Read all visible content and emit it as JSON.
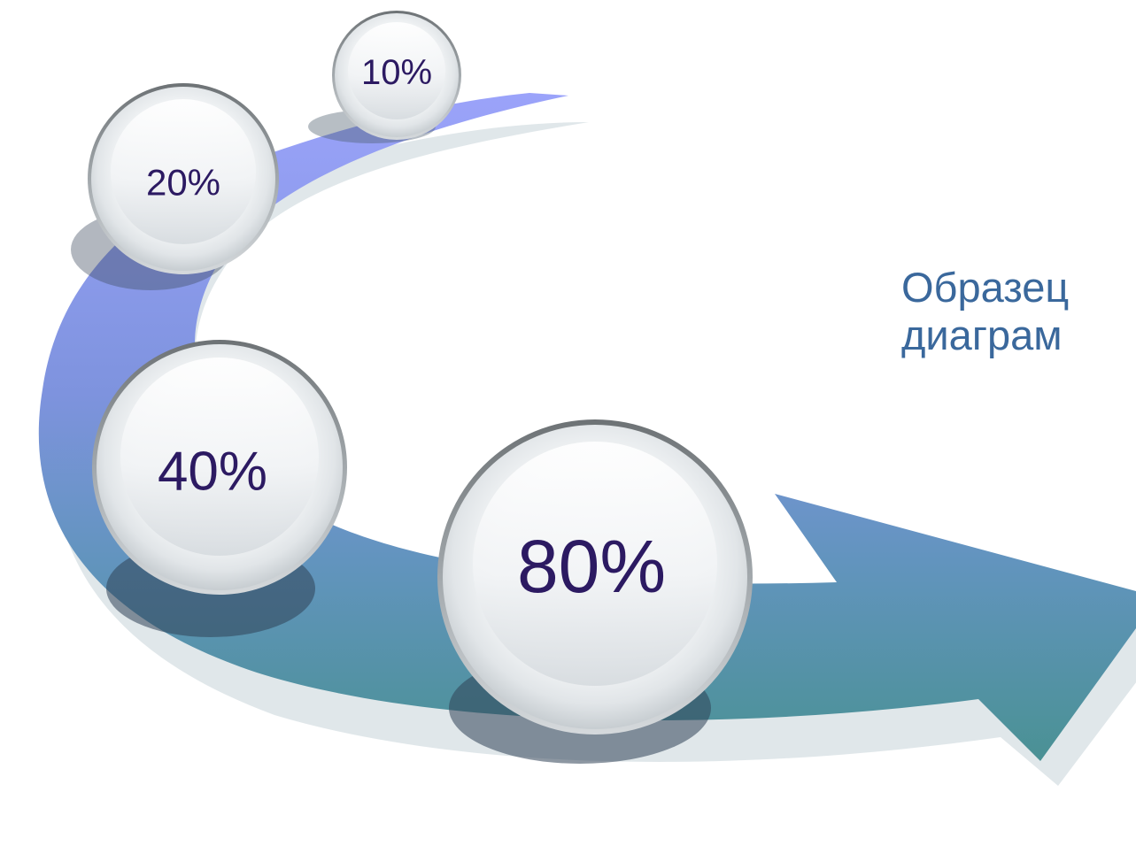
{
  "caption": {
    "line1": "Образец",
    "line2": "диаграм"
  },
  "bubbles": [
    {
      "label": "10%"
    },
    {
      "label": "20%"
    },
    {
      "label": "40%"
    },
    {
      "label": "80%"
    }
  ],
  "colors": {
    "arrow_top": "#9aa2f8",
    "arrow_bottom": "#4d9496",
    "text_caption": "#3a689c",
    "text_bubble": "#2c1a62"
  }
}
